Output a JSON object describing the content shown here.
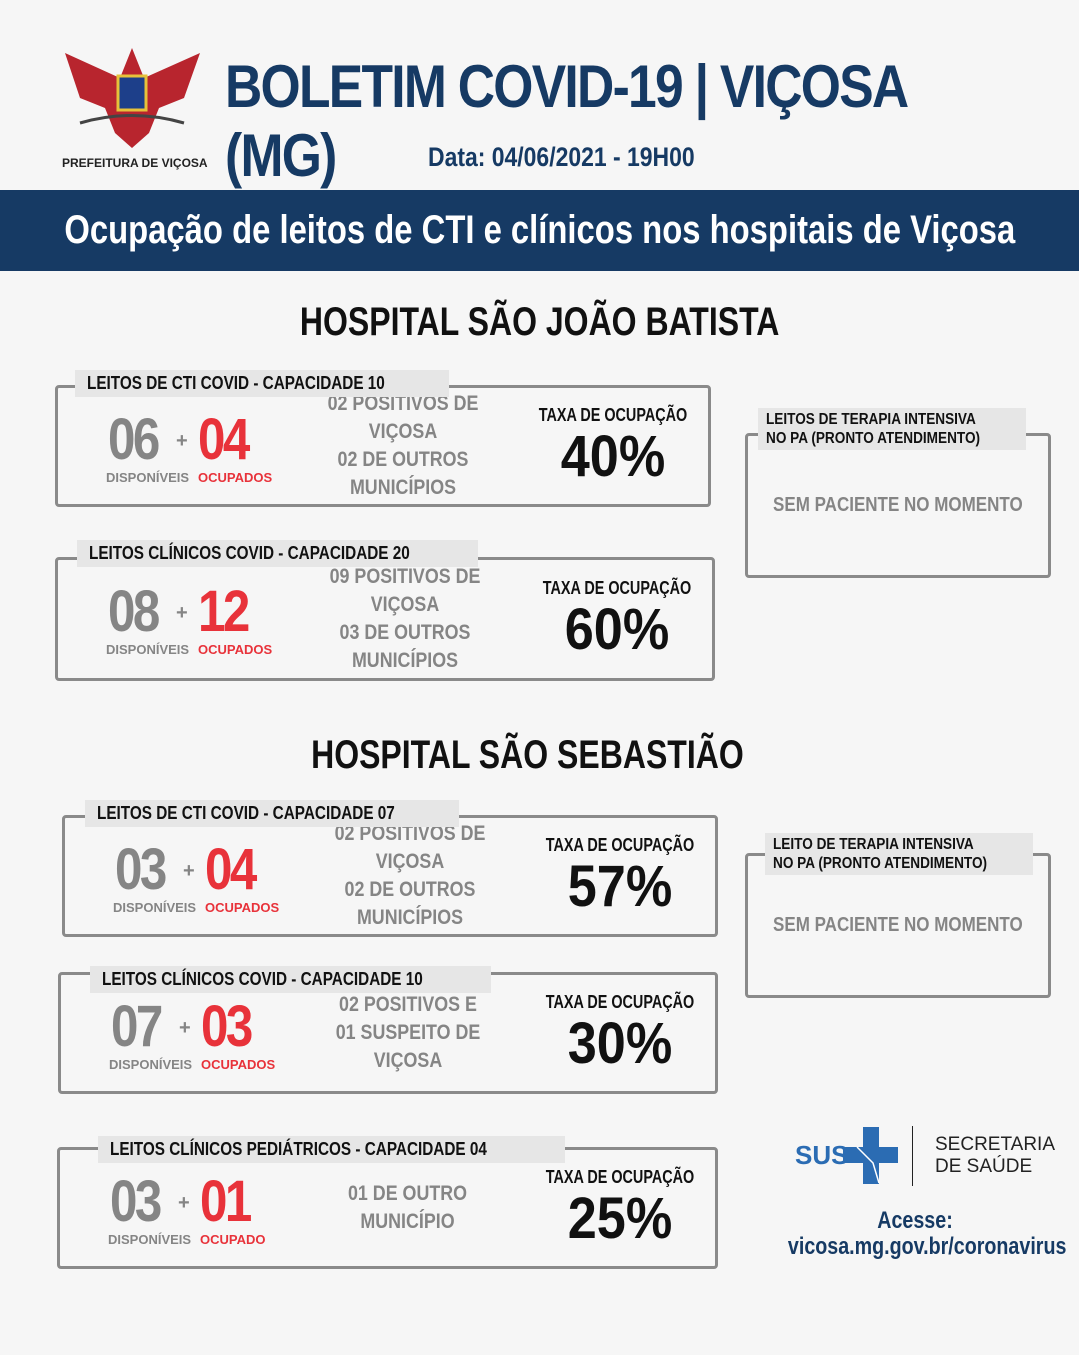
{
  "header": {
    "title": "BOLETIM COVID-19 | VIÇOSA (MG)",
    "date": "Data: 04/06/2021 - 19H00",
    "logo_text": "PREFEITURA DE VIÇOSA"
  },
  "banner": "Ocupação de leitos de CTI e clínicos nos hospitais de Viçosa",
  "rate_label": "TAXA DE OCUPAÇÃO",
  "hospitals": [
    {
      "name": "HOSPITAL SÃO JOÃO BATISTA",
      "cards": [
        {
          "title": "LEITOS DE CTI COVID - CAPACIDADE 10",
          "available": "06",
          "occupied": "04",
          "available_label": "DISPONÍVEIS",
          "occupied_label": "OCUPADOS",
          "line1": "02 POSITIVOS DE VIÇOSA",
          "line2": "02 DE OUTROS MUNICÍPIOS",
          "rate": "40%"
        },
        {
          "title": "LEITOS CLÍNICOS COVID - CAPACIDADE 20",
          "available": "08",
          "occupied": "12",
          "available_label": "DISPONÍVEIS",
          "occupied_label": "OCUPADOS",
          "line1": "09 POSITIVOS DE VIÇOSA",
          "line2": "03 DE OUTROS MUNICÍPIOS",
          "rate": "60%"
        }
      ],
      "side": {
        "title1": "LEITOS DE TERAPIA INTENSIVA",
        "title2": "NO PA (PRONTO ATENDIMENTO)",
        "message": "SEM PACIENTE NO MOMENTO"
      }
    },
    {
      "name": "HOSPITAL SÃO SEBASTIÃO",
      "cards": [
        {
          "title": "LEITOS DE CTI COVID - CAPACIDADE 07",
          "available": "03",
          "occupied": "04",
          "available_label": "DISPONÍVEIS",
          "occupied_label": "OCUPADOS",
          "line1": "02 POSITIVOS DE VIÇOSA",
          "line2": "02 DE OUTROS MUNICÍPIOS",
          "rate": "57%"
        },
        {
          "title": "LEITOS CLÍNICOS COVID - CAPACIDADE 10",
          "available": "07",
          "occupied": "03",
          "available_label": "DISPONÍVEIS",
          "occupied_label": "OCUPADOS",
          "line1": "02 POSITIVOS E",
          "line2": "01 SUSPEITO DE VIÇOSA",
          "rate": "30%"
        },
        {
          "title": "LEITOS CLÍNICOS PEDIÁTRICOS - CAPACIDADE 04",
          "available": "03",
          "occupied": "01",
          "available_label": "DISPONÍVEIS",
          "occupied_label": "OCUPADO",
          "line1": "01 DE OUTRO MUNICÍPIO",
          "line2": "",
          "rate": "25%"
        }
      ],
      "side": {
        "title1": "LEITO DE TERAPIA INTENSIVA",
        "title2": "NO PA (PRONTO ATENDIMENTO)",
        "message": "SEM PACIENTE NO MOMENTO"
      }
    }
  ],
  "footer": {
    "sus": "SUS",
    "secretaria1": "SECRETARIA",
    "secretaria2": "DE SAÚDE",
    "access": "Acesse:",
    "url": "vicosa.mg.gov.br/coronavirus"
  },
  "colors": {
    "brand": "#163a64",
    "occupied": "#e8323a",
    "available": "#858585",
    "sus": "#2b6cb3"
  }
}
